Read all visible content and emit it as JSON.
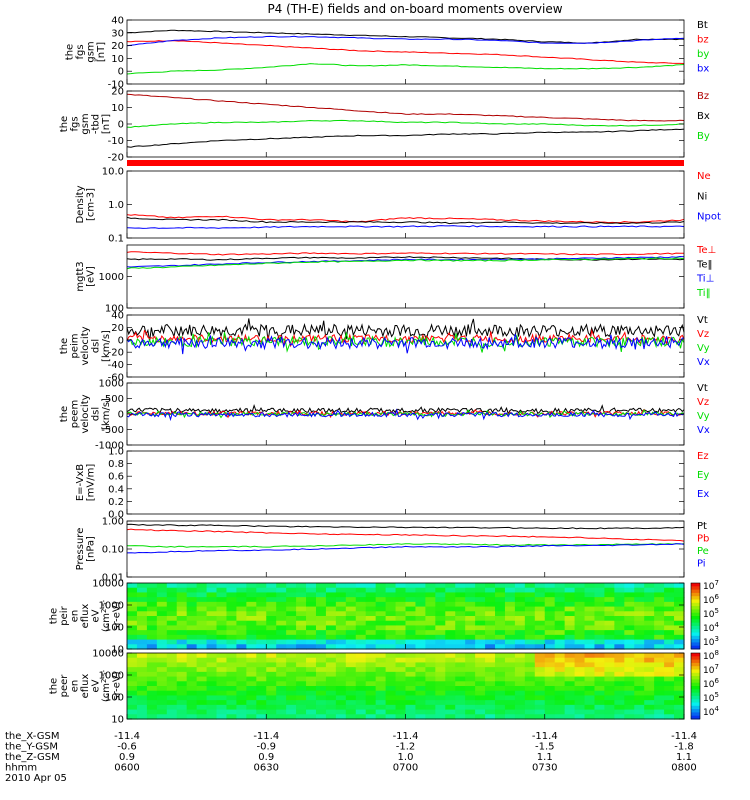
{
  "title": "P4 (TH-E) fields and on-board moments overview",
  "colors": {
    "black": "#000000",
    "red": "#ff0000",
    "green": "#00dd00",
    "blue": "#0000ff",
    "darkred": "#b00000",
    "redbar": "#ff0000"
  },
  "time_axis": {
    "ticks": [
      "0600",
      "0630",
      "0700",
      "0730",
      "0800"
    ],
    "rows": [
      {
        "label": "the_X-GSM",
        "values": [
          "-11.4",
          "-11.4",
          "-11.4",
          "-11.4",
          "-11.4"
        ]
      },
      {
        "label": "the_Y-GSM",
        "values": [
          "-0.6",
          "-0.9",
          "-1.2",
          "-1.5",
          "-1.8"
        ]
      },
      {
        "label": "the_Z-GSM",
        "values": [
          "0.9",
          "0.9",
          "1.0",
          "1.1",
          "1.1"
        ]
      },
      {
        "label": "hhmm",
        "values": [
          "0600",
          "0630",
          "0700",
          "0730",
          "0800"
        ]
      }
    ],
    "date": "2010 Apr 05"
  },
  "chart_data": [
    {
      "type": "line",
      "panel": "fgs_gsm",
      "ylabel_lines": [
        "the",
        "fgs",
        "gsm",
        "[nT]"
      ],
      "ylim": [
        -10,
        40
      ],
      "yticks": [
        "-10",
        "0",
        "10",
        "20",
        "30",
        "40"
      ],
      "series": [
        {
          "name": "Bt",
          "color": "black",
          "y": [
            30,
            32,
            31,
            30,
            29,
            28,
            27,
            26,
            25,
            23,
            22,
            25,
            25
          ]
        },
        {
          "name": "bz",
          "color": "red",
          "y": [
            23,
            24,
            22,
            20,
            18,
            16,
            15,
            14,
            13,
            11,
            9,
            7,
            6
          ]
        },
        {
          "name": "by",
          "color": "green",
          "y": [
            -2,
            0,
            1,
            3,
            6,
            4,
            5,
            4,
            3,
            2,
            2,
            3,
            5
          ]
        },
        {
          "name": "bx",
          "color": "blue",
          "y": [
            20,
            24,
            26,
            27,
            27,
            26,
            25,
            25,
            24,
            22,
            22,
            24,
            26
          ]
        }
      ]
    },
    {
      "type": "line",
      "panel": "fgs_gsm_tbd",
      "ylabel_lines": [
        "the",
        "fgs",
        "gsm",
        "-tbd",
        "[nT]"
      ],
      "ylim": [
        -20,
        20
      ],
      "yticks": [
        "-20",
        "-10",
        "0",
        "10",
        "20"
      ],
      "series": [
        {
          "name": "Bz",
          "color": "darkred",
          "y": [
            18,
            16,
            14,
            12,
            10,
            8,
            6,
            6,
            5,
            4,
            3,
            2,
            2
          ]
        },
        {
          "name": "Bx",
          "color": "black",
          "y": [
            -14,
            -12,
            -10,
            -9,
            -8,
            -7,
            -7,
            -6,
            -6,
            -5,
            -5,
            -4,
            -3
          ]
        },
        {
          "name": "By",
          "color": "green",
          "y": [
            -2,
            0,
            1,
            1,
            2,
            2,
            1,
            1,
            0,
            0,
            -1,
            -1,
            0
          ]
        }
      ],
      "legend_overlap_label": "Bz"
    },
    {
      "type": "line",
      "panel": "density",
      "scale": "log",
      "ylabel_lines": [
        "Density",
        "[cm-3]"
      ],
      "ylim": [
        0.1,
        10
      ],
      "yticks": [
        "0.1",
        "1.0",
        "10.0"
      ],
      "series": [
        {
          "name": "Ne",
          "color": "red",
          "y": [
            0.5,
            0.4,
            0.45,
            0.35,
            0.35,
            0.3,
            0.4,
            0.38,
            0.35,
            0.32,
            0.3,
            0.3,
            0.35
          ]
        },
        {
          "name": "Ni",
          "color": "black",
          "y": [
            0.4,
            0.35,
            0.35,
            0.3,
            0.3,
            0.3,
            0.3,
            0.28,
            0.3,
            0.28,
            0.28,
            0.28,
            0.3
          ]
        },
        {
          "name": "Npot",
          "color": "blue",
          "y": [
            0.2,
            0.2,
            0.2,
            0.21,
            0.22,
            0.22,
            0.22,
            0.23,
            0.22,
            0.22,
            0.22,
            0.22,
            0.22
          ]
        }
      ]
    },
    {
      "type": "line",
      "panel": "temperature",
      "scale": "log",
      "ylabel_lines": [
        "mgtt3",
        "[eV]"
      ],
      "ylim": [
        100,
        10000
      ],
      "yticks": [
        "100",
        "1000"
      ],
      "series": [
        {
          "name": "Te⊥",
          "color": "red",
          "y": [
            6000,
            5500,
            5000,
            5200,
            5500,
            5300,
            5500,
            5400,
            5300,
            5200,
            5000,
            5200,
            5400
          ]
        },
        {
          "name": "Te‖",
          "color": "black",
          "y": [
            3500,
            3600,
            3400,
            3800,
            4000,
            3800,
            4200,
            4000,
            3800,
            3500,
            3400,
            3600,
            3500
          ]
        },
        {
          "name": "Ti⊥",
          "color": "blue",
          "y": [
            2000,
            2200,
            2500,
            2800,
            3000,
            3200,
            3500,
            3400,
            3500,
            3600,
            3800,
            4000,
            4200
          ]
        },
        {
          "name": "Ti‖",
          "color": "green",
          "y": [
            1800,
            2000,
            2300,
            2600,
            2900,
            3000,
            3300,
            3200,
            3200,
            3400,
            3500,
            3700,
            3800
          ]
        }
      ]
    },
    {
      "type": "line",
      "panel": "peim_velocity",
      "noisy": true,
      "ylabel_lines": [
        "the",
        "peim",
        "velocity",
        "dsl",
        "[km/s]"
      ],
      "ylim": [
        -60,
        40
      ],
      "yticks": [
        "-60",
        "-40",
        "-20",
        "0",
        "20",
        "40"
      ],
      "series": [
        {
          "name": "Vt",
          "color": "black",
          "base": 15,
          "amp": 10
        },
        {
          "name": "Vz",
          "color": "red",
          "base": 2,
          "amp": 6
        },
        {
          "name": "Vy",
          "color": "green",
          "base": -3,
          "amp": 8
        },
        {
          "name": "Vx",
          "color": "blue",
          "base": -5,
          "amp": 9
        }
      ]
    },
    {
      "type": "line",
      "panel": "peem_velocity",
      "noisy": true,
      "ylabel_lines": [
        "the",
        "peem",
        "velocity",
        "dsl",
        "[km/s]"
      ],
      "ylim": [
        -1000,
        1000
      ],
      "yticks": [
        "-1000",
        "-500",
        "0",
        "500",
        "1000"
      ],
      "series": [
        {
          "name": "Vt",
          "color": "black",
          "base": 120,
          "amp": 70
        },
        {
          "name": "Vz",
          "color": "red",
          "base": 20,
          "amp": 60
        },
        {
          "name": "Vy",
          "color": "green",
          "base": 0,
          "amp": 60
        },
        {
          "name": "Vx",
          "color": "blue",
          "base": -20,
          "amp": 70
        }
      ]
    },
    {
      "type": "line",
      "panel": "e_vxb",
      "ylabel_lines": [
        "E=-VxB",
        "[mV/m]"
      ],
      "ylim": [
        0,
        1
      ],
      "yticks": [
        "0.0",
        "0.2",
        "0.4",
        "0.6",
        "0.8",
        "1.0"
      ],
      "series": [
        {
          "name": "Ez",
          "color": "red",
          "y": []
        },
        {
          "name": "Ey",
          "color": "green",
          "y": []
        },
        {
          "name": "Ex",
          "color": "blue",
          "y": []
        }
      ]
    },
    {
      "type": "line",
      "panel": "pressure",
      "scale": "log",
      "ylabel_lines": [
        "Pressure",
        "[nPa]"
      ],
      "ylim": [
        0.01,
        1
      ],
      "yticks": [
        "0.01",
        "0.10",
        "1.00"
      ],
      "series": [
        {
          "name": "Pt",
          "color": "black",
          "y": [
            0.75,
            0.7,
            0.7,
            0.65,
            0.62,
            0.6,
            0.6,
            0.58,
            0.57,
            0.56,
            0.55,
            0.55,
            0.58
          ]
        },
        {
          "name": "Pb",
          "color": "red",
          "y": [
            0.5,
            0.45,
            0.42,
            0.38,
            0.35,
            0.33,
            0.32,
            0.3,
            0.29,
            0.27,
            0.25,
            0.22,
            0.2
          ]
        },
        {
          "name": "Pe",
          "color": "green",
          "y": [
            0.13,
            0.12,
            0.12,
            0.12,
            0.13,
            0.14,
            0.15,
            0.15,
            0.14,
            0.14,
            0.14,
            0.15,
            0.15
          ]
        },
        {
          "name": "Pi",
          "color": "blue",
          "y": [
            0.07,
            0.08,
            0.09,
            0.09,
            0.1,
            0.11,
            0.12,
            0.12,
            0.12,
            0.13,
            0.13,
            0.14,
            0.15
          ]
        }
      ]
    },
    {
      "type": "heatmap",
      "panel": "peir_en_eflux",
      "ylabel_lines": [
        "the",
        "peir",
        "en",
        "eflux",
        "eV",
        "(cm^2-s-",
        "sr-eV)"
      ],
      "ylim": [
        10,
        10000
      ],
      "yticks": [
        "10",
        "100",
        "1000",
        "10000"
      ],
      "colorbar": {
        "labels": [
          "10^7",
          "10^6",
          "10^5",
          "10^4",
          "10^3"
        ]
      }
    },
    {
      "type": "heatmap",
      "panel": "peer_en_eflux",
      "ylabel_lines": [
        "the",
        "peer",
        "en",
        "eflux",
        "eV",
        "(cm^2-s-",
        "sr-eV)"
      ],
      "ylim": [
        10,
        10000
      ],
      "yticks": [
        "10",
        "100",
        "1000",
        "10000"
      ],
      "colorbar": {
        "labels": [
          "10^8",
          "10^7",
          "10^6",
          "10^5",
          "10^4"
        ]
      }
    }
  ]
}
